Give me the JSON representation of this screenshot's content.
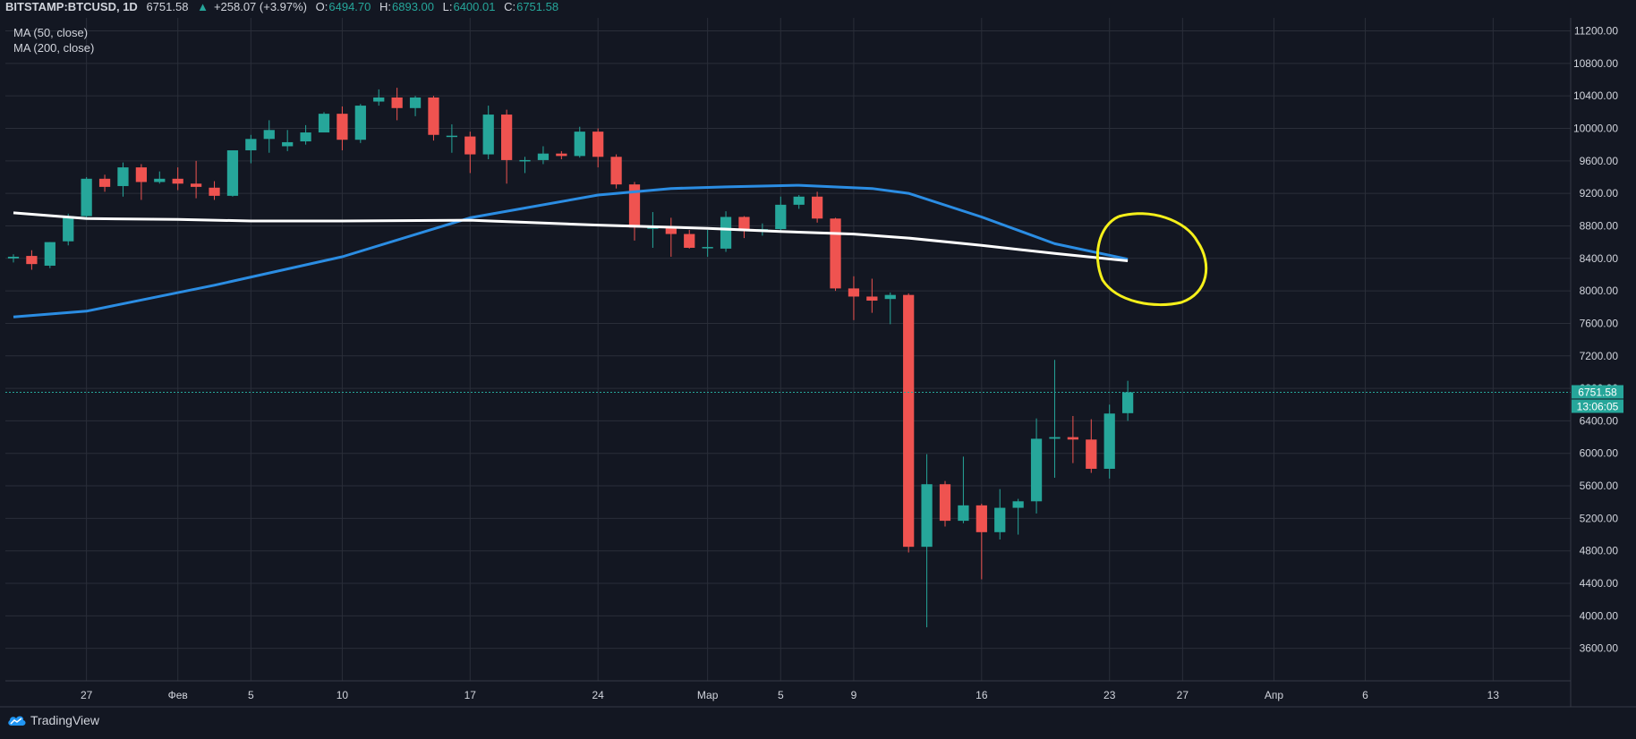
{
  "header": {
    "symbol": "BITSTAMP:BTCUSD, 1D",
    "last": "6751.58",
    "change": "+258.07 (+3.97%)",
    "o_label": "O:",
    "o": "6494.70",
    "h_label": "H:",
    "h": "6893.00",
    "l_label": "L:",
    "l": "6400.01",
    "c_label": "C:",
    "c": "6751.58"
  },
  "indicators": [
    "MA (50, close)",
    "MA (200, close)"
  ],
  "price_tag": {
    "value": "6751.58",
    "countdown": "13:06:05"
  },
  "brand": {
    "name": "TradingView",
    "icon": "tradingview-cloud-icon"
  },
  "colors": {
    "bg": "#131722",
    "up": "#26a69a",
    "down": "#ef5350",
    "ma50": "#2b8de3",
    "ma200": "#ffffff",
    "annotation": "#f5f01a",
    "grid": "#2a2e39",
    "text": "#d1d4dc"
  },
  "chart_data": {
    "type": "candlestick",
    "y_axis": {
      "min": 3200,
      "max": 11360,
      "ticks": [
        3600,
        4000,
        4400,
        4800,
        5200,
        5600,
        6000,
        6400,
        6800,
        7200,
        7600,
        8000,
        8400,
        8800,
        9200,
        9600,
        10000,
        10400,
        10800,
        11200
      ]
    },
    "x_axis": {
      "start_date": "2020-01-23",
      "end_date": "2020-04-17",
      "ticks": [
        {
          "date": "2020-01-27",
          "label": "27"
        },
        {
          "date": "2020-02-01",
          "label": "Фев"
        },
        {
          "date": "2020-02-05",
          "label": "5"
        },
        {
          "date": "2020-02-10",
          "label": "10"
        },
        {
          "date": "2020-02-17",
          "label": "17"
        },
        {
          "date": "2020-02-24",
          "label": "24"
        },
        {
          "date": "2020-03-01",
          "label": "Мар"
        },
        {
          "date": "2020-03-05",
          "label": "5"
        },
        {
          "date": "2020-03-09",
          "label": "9"
        },
        {
          "date": "2020-03-16",
          "label": "16"
        },
        {
          "date": "2020-03-23",
          "label": "23"
        },
        {
          "date": "2020-03-27",
          "label": "27"
        },
        {
          "date": "2020-04-01",
          "label": "Апр"
        },
        {
          "date": "2020-04-06",
          "label": "6"
        },
        {
          "date": "2020-04-13",
          "label": "13"
        }
      ]
    },
    "candles": [
      {
        "date": "2020-01-23",
        "o": 8400,
        "h": 8450,
        "l": 8350,
        "c": 8420
      },
      {
        "date": "2020-01-24",
        "o": 8430,
        "h": 8500,
        "l": 8260,
        "c": 8330
      },
      {
        "date": "2020-01-25",
        "o": 8310,
        "h": 8600,
        "l": 8280,
        "c": 8600
      },
      {
        "date": "2020-01-26",
        "o": 8610,
        "h": 8950,
        "l": 8560,
        "c": 8920
      },
      {
        "date": "2020-01-27",
        "o": 8920,
        "h": 9400,
        "l": 8880,
        "c": 9380
      },
      {
        "date": "2020-01-28",
        "o": 9380,
        "h": 9430,
        "l": 9220,
        "c": 9280
      },
      {
        "date": "2020-01-29",
        "o": 9290,
        "h": 9580,
        "l": 9160,
        "c": 9520
      },
      {
        "date": "2020-01-30",
        "o": 9520,
        "h": 9560,
        "l": 9120,
        "c": 9340
      },
      {
        "date": "2020-01-31",
        "o": 9340,
        "h": 9470,
        "l": 9320,
        "c": 9380
      },
      {
        "date": "2020-02-01",
        "o": 9380,
        "h": 9520,
        "l": 9240,
        "c": 9320
      },
      {
        "date": "2020-02-02",
        "o": 9320,
        "h": 9600,
        "l": 9140,
        "c": 9280
      },
      {
        "date": "2020-02-03",
        "o": 9270,
        "h": 9350,
        "l": 9120,
        "c": 9170
      },
      {
        "date": "2020-02-04",
        "o": 9170,
        "h": 9730,
        "l": 9160,
        "c": 9730
      },
      {
        "date": "2020-02-05",
        "o": 9730,
        "h": 9920,
        "l": 9570,
        "c": 9870
      },
      {
        "date": "2020-02-06",
        "o": 9870,
        "h": 10100,
        "l": 9700,
        "c": 9980
      },
      {
        "date": "2020-02-07",
        "o": 9780,
        "h": 9980,
        "l": 9720,
        "c": 9830
      },
      {
        "date": "2020-02-08",
        "o": 9840,
        "h": 10040,
        "l": 9800,
        "c": 9950
      },
      {
        "date": "2020-02-09",
        "o": 9950,
        "h": 10200,
        "l": 9950,
        "c": 10180
      },
      {
        "date": "2020-02-10",
        "o": 10180,
        "h": 10270,
        "l": 9730,
        "c": 9860
      },
      {
        "date": "2020-02-11",
        "o": 9860,
        "h": 10300,
        "l": 9820,
        "c": 10280
      },
      {
        "date": "2020-02-12",
        "o": 10330,
        "h": 10480,
        "l": 10280,
        "c": 10380
      },
      {
        "date": "2020-02-13",
        "o": 10380,
        "h": 10500,
        "l": 10100,
        "c": 10250
      },
      {
        "date": "2020-02-14",
        "o": 10250,
        "h": 10400,
        "l": 10150,
        "c": 10380
      },
      {
        "date": "2020-02-15",
        "o": 10380,
        "h": 10400,
        "l": 9850,
        "c": 9920
      },
      {
        "date": "2020-02-16",
        "o": 9910,
        "h": 10050,
        "l": 9700,
        "c": 9910
      },
      {
        "date": "2020-02-17",
        "o": 9900,
        "h": 9960,
        "l": 9450,
        "c": 9680
      },
      {
        "date": "2020-02-18",
        "o": 9680,
        "h": 10280,
        "l": 9620,
        "c": 10170
      },
      {
        "date": "2020-02-19",
        "o": 10170,
        "h": 10230,
        "l": 9320,
        "c": 9610
      },
      {
        "date": "2020-02-20",
        "o": 9600,
        "h": 9650,
        "l": 9450,
        "c": 9610
      },
      {
        "date": "2020-02-21",
        "o": 9610,
        "h": 9780,
        "l": 9560,
        "c": 9690
      },
      {
        "date": "2020-02-22",
        "o": 9690,
        "h": 9720,
        "l": 9620,
        "c": 9660
      },
      {
        "date": "2020-02-23",
        "o": 9660,
        "h": 10020,
        "l": 9640,
        "c": 9960
      },
      {
        "date": "2020-02-24",
        "o": 9960,
        "h": 10000,
        "l": 9520,
        "c": 9650
      },
      {
        "date": "2020-02-25",
        "o": 9650,
        "h": 9680,
        "l": 9260,
        "c": 9310
      },
      {
        "date": "2020-02-26",
        "o": 9310,
        "h": 9340,
        "l": 8620,
        "c": 8780
      },
      {
        "date": "2020-02-27",
        "o": 8780,
        "h": 8970,
        "l": 8530,
        "c": 8780
      },
      {
        "date": "2020-02-28",
        "o": 8780,
        "h": 8900,
        "l": 8420,
        "c": 8700
      },
      {
        "date": "2020-02-29",
        "o": 8700,
        "h": 8750,
        "l": 8520,
        "c": 8530
      },
      {
        "date": "2020-03-01",
        "o": 8530,
        "h": 8750,
        "l": 8420,
        "c": 8540
      },
      {
        "date": "2020-03-02",
        "o": 8520,
        "h": 8980,
        "l": 8480,
        "c": 8910
      },
      {
        "date": "2020-03-03",
        "o": 8910,
        "h": 8920,
        "l": 8650,
        "c": 8750
      },
      {
        "date": "2020-03-04",
        "o": 8750,
        "h": 8830,
        "l": 8680,
        "c": 8760
      },
      {
        "date": "2020-03-05",
        "o": 8760,
        "h": 9160,
        "l": 8740,
        "c": 9060
      },
      {
        "date": "2020-03-06",
        "o": 9060,
        "h": 9180,
        "l": 9010,
        "c": 9160
      },
      {
        "date": "2020-03-07",
        "o": 9160,
        "h": 9220,
        "l": 8840,
        "c": 8890
      },
      {
        "date": "2020-03-08",
        "o": 8890,
        "h": 8900,
        "l": 8000,
        "c": 8030
      },
      {
        "date": "2020-03-09",
        "o": 8030,
        "h": 8180,
        "l": 7640,
        "c": 7930
      },
      {
        "date": "2020-03-10",
        "o": 7930,
        "h": 8150,
        "l": 7730,
        "c": 7880
      },
      {
        "date": "2020-03-11",
        "o": 7900,
        "h": 7980,
        "l": 7590,
        "c": 7950
      },
      {
        "date": "2020-03-12",
        "o": 7950,
        "h": 7970,
        "l": 4780,
        "c": 4850
      },
      {
        "date": "2020-03-13",
        "o": 4850,
        "h": 5990,
        "l": 3860,
        "c": 5620
      },
      {
        "date": "2020-03-14",
        "o": 5620,
        "h": 5660,
        "l": 5100,
        "c": 5170
      },
      {
        "date": "2020-03-15",
        "o": 5170,
        "h": 5960,
        "l": 5140,
        "c": 5360
      },
      {
        "date": "2020-03-16",
        "o": 5360,
        "h": 5380,
        "l": 4450,
        "c": 5030
      },
      {
        "date": "2020-03-17",
        "o": 5030,
        "h": 5560,
        "l": 4940,
        "c": 5330
      },
      {
        "date": "2020-03-18",
        "o": 5330,
        "h": 5440,
        "l": 5000,
        "c": 5410
      },
      {
        "date": "2020-03-19",
        "o": 5410,
        "h": 6430,
        "l": 5260,
        "c": 6180
      },
      {
        "date": "2020-03-20",
        "o": 6180,
        "h": 7150,
        "l": 5700,
        "c": 6200
      },
      {
        "date": "2020-03-21",
        "o": 6200,
        "h": 6460,
        "l": 5880,
        "c": 6170
      },
      {
        "date": "2020-03-22",
        "o": 6170,
        "h": 6420,
        "l": 5760,
        "c": 5810
      },
      {
        "date": "2020-03-23",
        "o": 5810,
        "h": 6600,
        "l": 5690,
        "c": 6490
      },
      {
        "date": "2020-03-24",
        "o": 6494.7,
        "h": 6893.0,
        "l": 6400.01,
        "c": 6751.58
      }
    ],
    "series": [
      {
        "name": "MA (50, close)",
        "x_dates": [
          "2020-01-23",
          "2020-01-27",
          "2020-02-03",
          "2020-02-10",
          "2020-02-17",
          "2020-02-24",
          "2020-02-28",
          "2020-03-02",
          "2020-03-06",
          "2020-03-10",
          "2020-03-12",
          "2020-03-16",
          "2020-03-20",
          "2020-03-24"
        ],
        "values": [
          7680,
          7750,
          8070,
          8420,
          8900,
          9180,
          9260,
          9280,
          9300,
          9260,
          9200,
          8910,
          8580,
          8390
        ]
      },
      {
        "name": "MA (200, close)",
        "x_dates": [
          "2020-01-23",
          "2020-01-27",
          "2020-02-01",
          "2020-02-05",
          "2020-02-10",
          "2020-02-17",
          "2020-02-24",
          "2020-03-01",
          "2020-03-05",
          "2020-03-09",
          "2020-03-12",
          "2020-03-16",
          "2020-03-20",
          "2020-03-24"
        ],
        "values": [
          8960,
          8890,
          8880,
          8860,
          8860,
          8870,
          8810,
          8770,
          8730,
          8700,
          8650,
          8560,
          8460,
          8370
        ]
      }
    ],
    "last_price": 6751.58,
    "legend": "top-left"
  }
}
